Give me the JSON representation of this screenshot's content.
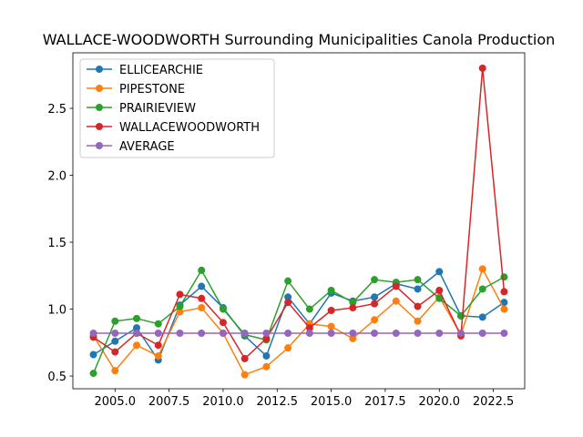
{
  "chart_data": {
    "type": "line",
    "title": "WALLACE-WOODWORTH Surrounding Municipalities Canola Production",
    "xlabel": "",
    "ylabel": "",
    "x": [
      2004,
      2005,
      2006,
      2007,
      2008,
      2009,
      2010,
      2011,
      2012,
      2013,
      2014,
      2015,
      2016,
      2017,
      2018,
      2019,
      2020,
      2021,
      2022,
      2023
    ],
    "xlim": [
      2003.05,
      2023.95
    ],
    "ylim": [
      0.405,
      2.915
    ],
    "xticks": [
      2005.0,
      2007.5,
      2010.0,
      2012.5,
      2015.0,
      2017.5,
      2020.0,
      2022.5
    ],
    "xtick_labels": [
      "2005.0",
      "2007.5",
      "2010.0",
      "2012.5",
      "2015.0",
      "2017.5",
      "2020.0",
      "2022.5"
    ],
    "yticks": [
      0.5,
      1.0,
      1.5,
      2.0,
      2.5
    ],
    "ytick_labels": [
      "0.5",
      "1.0",
      "1.5",
      "2.0",
      "2.5"
    ],
    "grid": false,
    "legend_position": "top-left",
    "series": [
      {
        "name": "ELLICEARCHIE",
        "color": "#1f77b4",
        "values": [
          0.66,
          0.76,
          0.86,
          0.62,
          1.03,
          1.17,
          1.01,
          0.8,
          0.65,
          1.09,
          0.89,
          1.12,
          1.06,
          1.09,
          1.19,
          1.15,
          1.28,
          0.95,
          0.94,
          1.05
        ]
      },
      {
        "name": "PIPESTONE",
        "color": "#ff7f0e",
        "values": [
          0.8,
          0.54,
          0.73,
          0.65,
          0.98,
          1.01,
          0.82,
          0.51,
          0.57,
          0.71,
          0.89,
          0.87,
          0.78,
          0.92,
          1.06,
          0.91,
          1.09,
          0.81,
          1.3,
          1.0
        ]
      },
      {
        "name": "PRAIRIEVIEW",
        "color": "#2ca02c",
        "values": [
          0.52,
          0.91,
          0.93,
          0.89,
          1.02,
          1.29,
          1.0,
          0.81,
          0.77,
          1.21,
          1.0,
          1.14,
          1.05,
          1.22,
          1.2,
          1.22,
          1.08,
          0.95,
          1.15,
          1.24
        ]
      },
      {
        "name": "WALLACEWOODWORTH",
        "color": "#d62728",
        "values": [
          0.79,
          0.68,
          0.82,
          0.73,
          1.11,
          1.08,
          0.9,
          0.63,
          0.78,
          1.05,
          0.86,
          0.99,
          1.01,
          1.04,
          1.17,
          1.02,
          1.14,
          0.8,
          2.8,
          1.13
        ]
      },
      {
        "name": "AVERAGE",
        "color": "#9467bd",
        "values": [
          0.82,
          0.82,
          0.82,
          0.82,
          0.82,
          0.82,
          0.82,
          0.82,
          0.82,
          0.82,
          0.82,
          0.82,
          0.82,
          0.82,
          0.82,
          0.82,
          0.82,
          0.82,
          0.82,
          0.82
        ]
      }
    ]
  }
}
